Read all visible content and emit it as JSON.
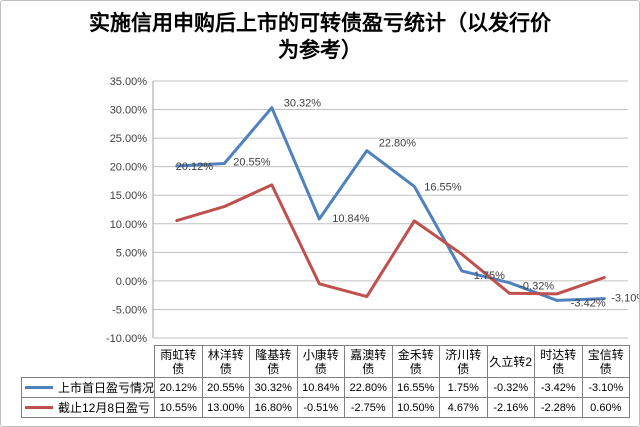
{
  "title": {
    "line1": "实施信用申购后上市的可转债盈亏统计（以发行价",
    "line2": "为参考）"
  },
  "chart_data": {
    "type": "line",
    "categories": [
      "雨虹转债",
      "林洋转债",
      "隆基转债",
      "小康转债",
      "嘉澳转债",
      "金禾转债",
      "济川转债",
      "久立转2",
      "时达转债",
      "宝信转债"
    ],
    "series": [
      {
        "name": "上市首日盈亏情况",
        "color": "#4F81BD",
        "values": [
          20.12,
          20.55,
          30.32,
          10.84,
          22.8,
          16.55,
          1.75,
          -0.32,
          -3.42,
          -3.1
        ],
        "display": [
          "20.12%",
          "20.55%",
          "30.32%",
          "10.84%",
          "22.80%",
          "16.55%",
          "1.75%",
          "-0.32%",
          "-3.42%",
          "-3.10%"
        ],
        "data_labels": true
      },
      {
        "name": "截止12月8日盈亏",
        "color": "#C0504D",
        "values": [
          10.55,
          13.0,
          16.8,
          -0.51,
          -2.75,
          10.5,
          4.67,
          -2.16,
          -2.28,
          0.6
        ],
        "display": [
          "10.55%",
          "13.00%",
          "16.80%",
          "-0.51%",
          "-2.75%",
          "10.50%",
          "4.67%",
          "-2.16%",
          "-2.28%",
          "0.60%"
        ],
        "data_labels": false
      }
    ],
    "yticks": [
      "35.00%",
      "30.00%",
      "25.00%",
      "20.00%",
      "15.00%",
      "10.00%",
      "5.00%",
      "0.00%",
      "-5.00%",
      "-10.00%"
    ],
    "ylim": [
      -10,
      35
    ],
    "grid": true,
    "legend_position": "table-left"
  },
  "colors": {
    "grid": "#C0C0C0",
    "axis": "#A0A0A0",
    "tick_label": "#404040",
    "data_label": "#404040",
    "table_border": "#808080",
    "background": "#FFFFFF"
  }
}
